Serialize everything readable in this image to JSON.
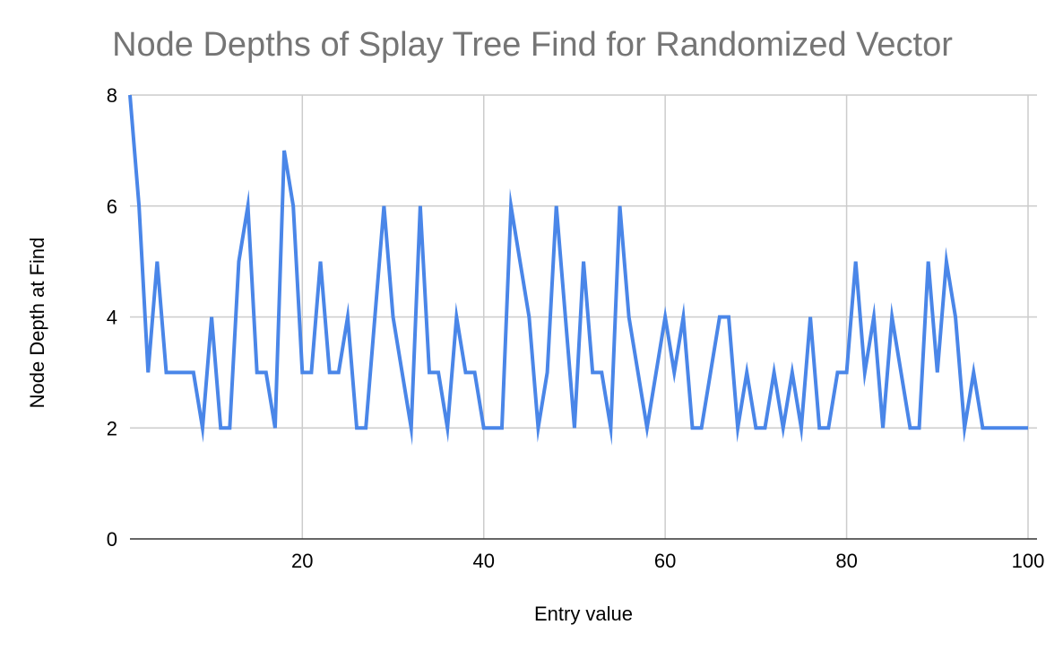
{
  "chart_data": {
    "type": "line",
    "title": "Node Depths of Splay Tree Find for Randomized Vector",
    "xlabel": "Entry value",
    "ylabel": "Node Depth at Find",
    "xlim": [
      1,
      100
    ],
    "ylim": [
      0,
      8
    ],
    "x_ticks": [
      20,
      40,
      60,
      80,
      100
    ],
    "y_ticks": [
      0,
      2,
      4,
      6,
      8
    ],
    "grid": true,
    "legend": "none",
    "series": [
      {
        "color": "#4a86e8",
        "x": [
          1,
          2,
          3,
          4,
          5,
          6,
          7,
          8,
          9,
          10,
          11,
          12,
          13,
          14,
          15,
          16,
          17,
          18,
          19,
          20,
          21,
          22,
          23,
          24,
          25,
          26,
          27,
          28,
          29,
          30,
          31,
          32,
          33,
          34,
          35,
          36,
          37,
          38,
          39,
          40,
          41,
          42,
          43,
          44,
          45,
          46,
          47,
          48,
          49,
          50,
          51,
          52,
          53,
          54,
          55,
          56,
          57,
          58,
          59,
          60,
          61,
          62,
          63,
          64,
          65,
          66,
          67,
          68,
          69,
          70,
          71,
          72,
          73,
          74,
          75,
          76,
          77,
          78,
          79,
          80,
          81,
          82,
          83,
          84,
          85,
          86,
          87,
          88,
          89,
          90,
          91,
          92,
          93,
          94,
          95,
          96,
          97,
          98,
          99,
          100
        ],
        "values": [
          8,
          6,
          3,
          5,
          3,
          3,
          3,
          3,
          2,
          4,
          2,
          2,
          5,
          6,
          3,
          3,
          2,
          7,
          6,
          3,
          3,
          5,
          3,
          3,
          4,
          2,
          2,
          4,
          6,
          4,
          3,
          2,
          6,
          3,
          3,
          2,
          4,
          3,
          3,
          2,
          2,
          2,
          6,
          5,
          4,
          2,
          3,
          6,
          4,
          2,
          5,
          3,
          3,
          2,
          6,
          4,
          3,
          2,
          3,
          4,
          3,
          4,
          2,
          2,
          3,
          4,
          4,
          2,
          3,
          2,
          2,
          3,
          2,
          3,
          2,
          4,
          2,
          2,
          3,
          3,
          5,
          3,
          4,
          2,
          4,
          3,
          2,
          2,
          5,
          3,
          5,
          4,
          2,
          3,
          2,
          2,
          2,
          2,
          2,
          2
        ]
      }
    ]
  }
}
